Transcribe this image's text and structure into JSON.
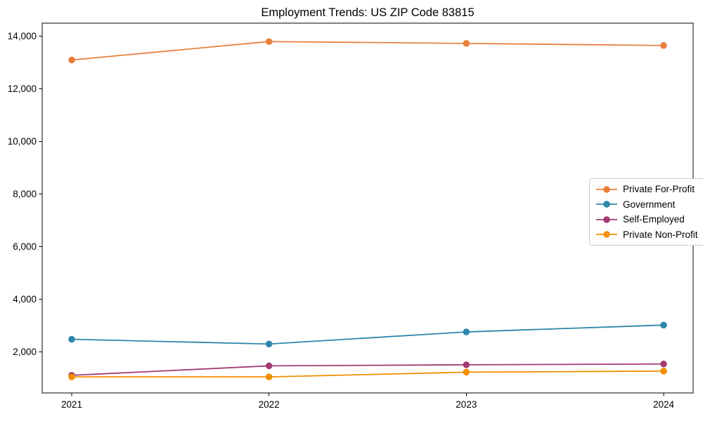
{
  "chart_data": {
    "type": "line",
    "title": "Employment Trends: US ZIP Code 83815",
    "x": [
      "2021",
      "2022",
      "2023",
      "2024"
    ],
    "y_ticks": [
      2000,
      4000,
      6000,
      8000,
      10000,
      12000,
      14000
    ],
    "y_tick_labels": [
      "2,000",
      "4,000",
      "6,000",
      "8,000",
      "10,000",
      "12,000",
      "14,000"
    ],
    "ylim": [
      440,
      14500
    ],
    "grid": false,
    "xlabel": "",
    "ylabel": "",
    "marker": "circle",
    "legend_position": "center-right",
    "axis_color": "#000000",
    "series": [
      {
        "name": "Private For-Profit",
        "color": "#E8813E",
        "values": [
          13100,
          13800,
          13730,
          13650
        ]
      },
      {
        "name": "Government",
        "color": "#2E86AB",
        "values": [
          2480,
          2300,
          2760,
          3020
        ]
      },
      {
        "name": "Self-Employed",
        "color": "#A23B72",
        "values": [
          1110,
          1470,
          1510,
          1540
        ]
      },
      {
        "name": "Private Non-Profit",
        "color": "#F18F01",
        "values": [
          1050,
          1050,
          1230,
          1270
        ]
      }
    ]
  }
}
